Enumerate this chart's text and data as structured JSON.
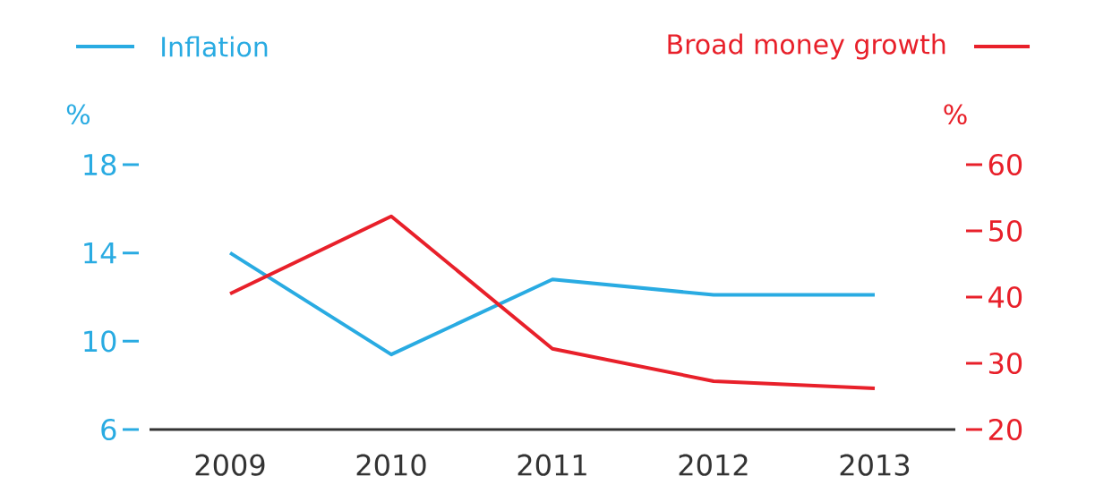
{
  "chart_data": {
    "type": "line",
    "categories": [
      "2009",
      "2010",
      "2011",
      "2012",
      "2013"
    ],
    "ylabel": "%",
    "y2label": "%",
    "ylim": [
      6,
      18
    ],
    "yticks": [
      6,
      10,
      14,
      18
    ],
    "y2lim": [
      20,
      60
    ],
    "y2ticks": [
      20,
      30,
      40,
      50,
      60
    ],
    "legend": "top",
    "series": [
      {
        "name": "Inflation",
        "color": "#29abe2",
        "values": [
          14.0,
          9.4,
          12.8,
          12.1,
          12.1
        ]
      },
      {
        "name": "Broad money growth",
        "color": "#e8202a",
        "axis": "y2",
        "values": [
          40.5,
          52.2,
          32.2,
          27.3,
          26.2
        ]
      }
    ]
  }
}
